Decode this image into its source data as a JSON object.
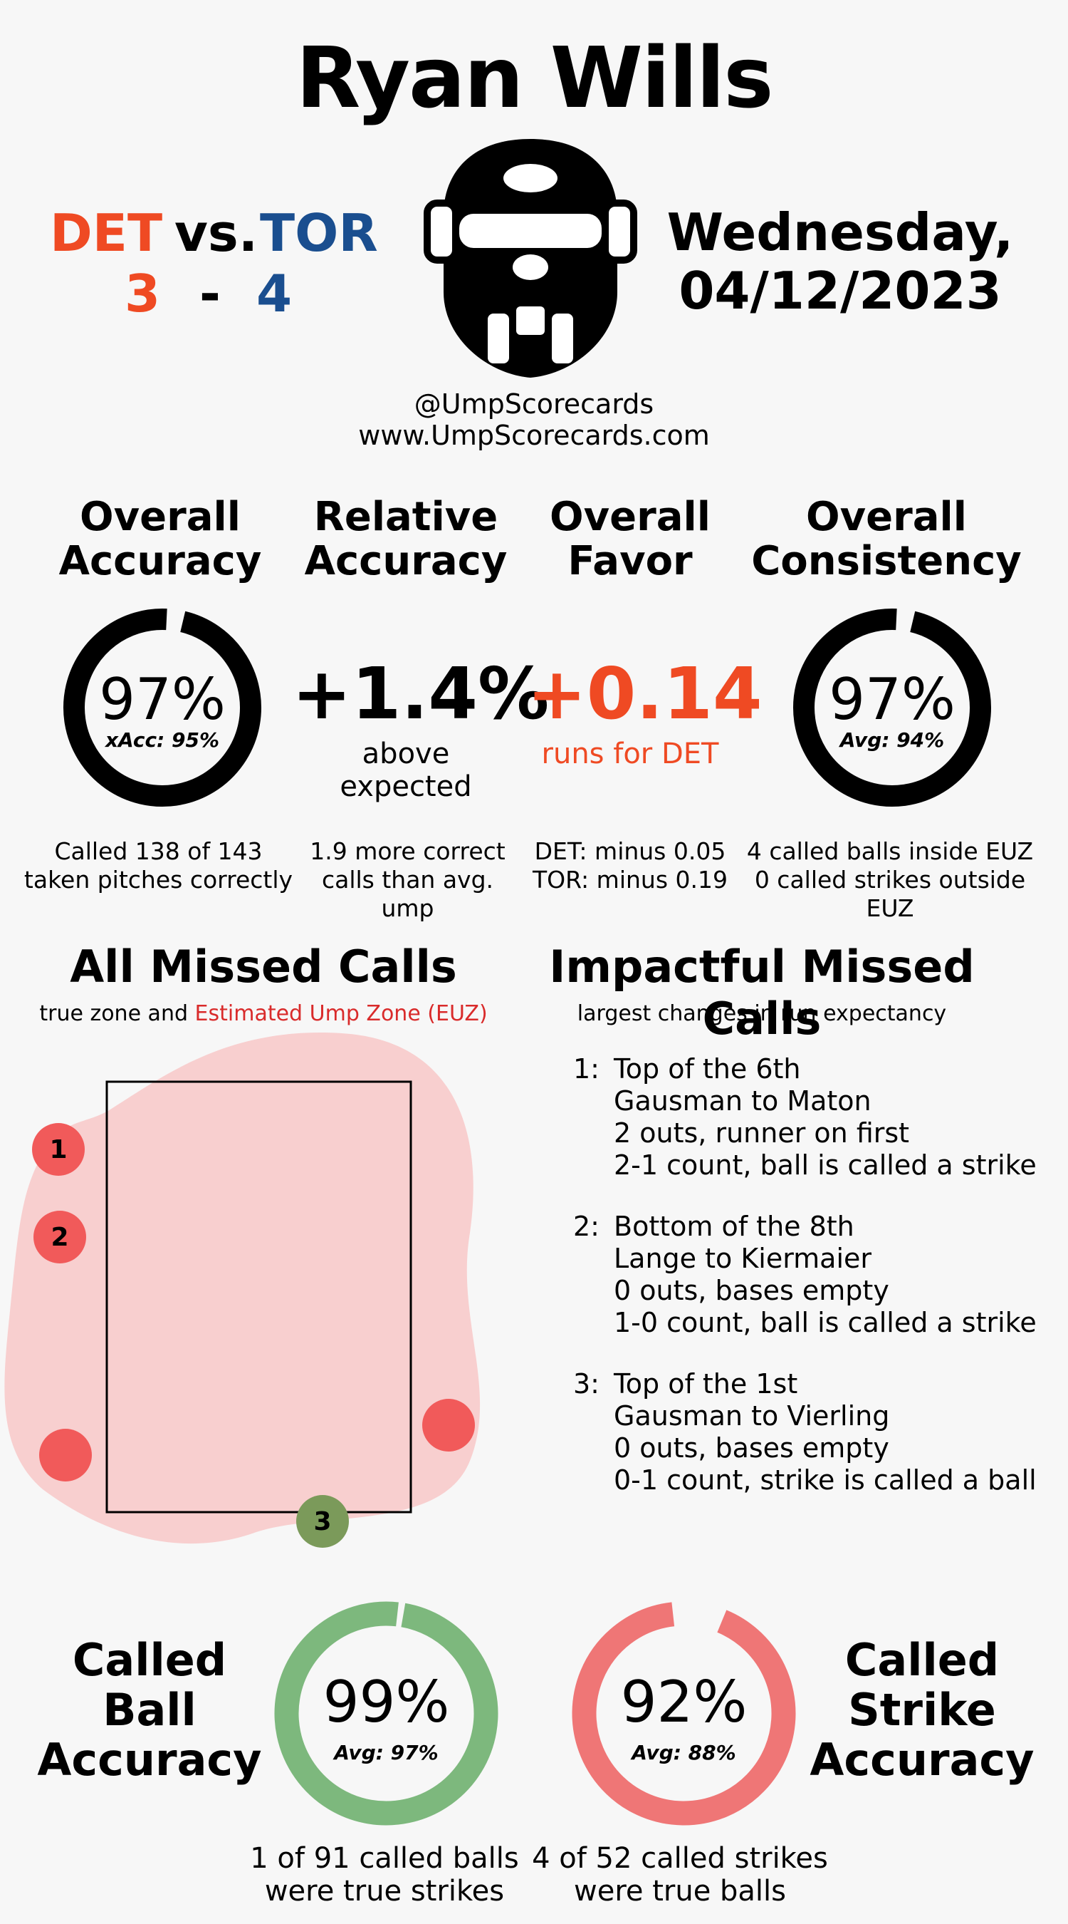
{
  "umpire_name": "Ryan Wills",
  "game": {
    "away_team": "DET",
    "home_team": "TOR",
    "vs": "vs.",
    "away_score": "3",
    "dash": "-",
    "home_score": "4",
    "date_line1": "Wednesday,",
    "date_line2": "04/12/2023"
  },
  "social": {
    "handle": "@UmpScorecards",
    "site": "www.UmpScorecards.com"
  },
  "icons": {
    "umpire_mask": "umpire-mask-icon"
  },
  "stats": {
    "overall_accuracy": {
      "title_line1": "Overall",
      "title_line2": "Accuracy",
      "value": "97%",
      "sub": "xAcc: 95%",
      "note_line1": "Called 138 of 143",
      "note_line2": "taken pitches correctly",
      "fill": 0.97
    },
    "relative_accuracy": {
      "title_line1": "Relative",
      "title_line2": "Accuracy",
      "value": "+1.4%",
      "sub": "above expected",
      "note_line1": "1.9 more correct",
      "note_line2": "calls than avg. ump"
    },
    "overall_favor": {
      "title_line1": "Overall",
      "title_line2": "Favor",
      "value": "+0.14",
      "sub": "runs for DET",
      "note_line1": "DET: minus 0.05",
      "note_line2": "TOR: minus 0.19"
    },
    "overall_consistency": {
      "title_line1": "Overall",
      "title_line2": "Consistency",
      "value": "97%",
      "sub": "Avg: 94%",
      "note_line1": "4 called balls inside EUZ",
      "note_line2": "0 called strikes outside EUZ",
      "fill": 0.97
    }
  },
  "missed_calls": {
    "title": "All Missed Calls",
    "subtitle_prefix": "true zone and ",
    "subtitle_highlight": "Estimated Ump Zone (EUZ)",
    "markers": [
      {
        "label": "1",
        "color": "#f15a5a"
      },
      {
        "label": "2",
        "color": "#f15a5a"
      },
      {
        "label": "",
        "color": "#f15a5a"
      },
      {
        "label": "",
        "color": "#f15a5a"
      },
      {
        "label": "3",
        "color": "#7b9a5a"
      }
    ]
  },
  "impactful": {
    "title": "Impactful Missed Calls",
    "subtitle": "largest changes in run expectancy",
    "calls": [
      {
        "num": "1:",
        "lines": [
          "Top of the 6th",
          "Gausman to Maton",
          "2 outs, runner on first",
          "2-1 count, ball is called a strike"
        ]
      },
      {
        "num": "2:",
        "lines": [
          "Bottom of the 8th",
          "Lange to Kiermaier",
          "0 outs, bases empty",
          "1-0 count, ball is called a strike"
        ]
      },
      {
        "num": "3:",
        "lines": [
          "Top of the 1st",
          "Gausman to Vierling",
          "0 outs, bases empty",
          "0-1 count, strike is called a ball"
        ]
      }
    ]
  },
  "called_ball": {
    "title_line1": "Called",
    "title_line2": "Ball",
    "title_line3": "Accuracy",
    "value": "99%",
    "sub": "Avg: 97%",
    "note_line1": "1 of 91 called balls",
    "note_line2": "were true strikes",
    "fill": 0.99,
    "color": "#7db87d"
  },
  "called_strike": {
    "title_line1": "Called",
    "title_line2": "Strike",
    "title_line3": "Accuracy",
    "value": "92%",
    "sub": "Avg: 88%",
    "note_line1": "4 of 52 called strikes",
    "note_line2": "were true balls",
    "fill": 0.92,
    "color": "#ef7676"
  },
  "colors": {
    "det": "#ef4a23",
    "tor": "#1a4e8f",
    "euz_fill": "#f8cfcf",
    "euz_highlight": "#d92b2b"
  }
}
